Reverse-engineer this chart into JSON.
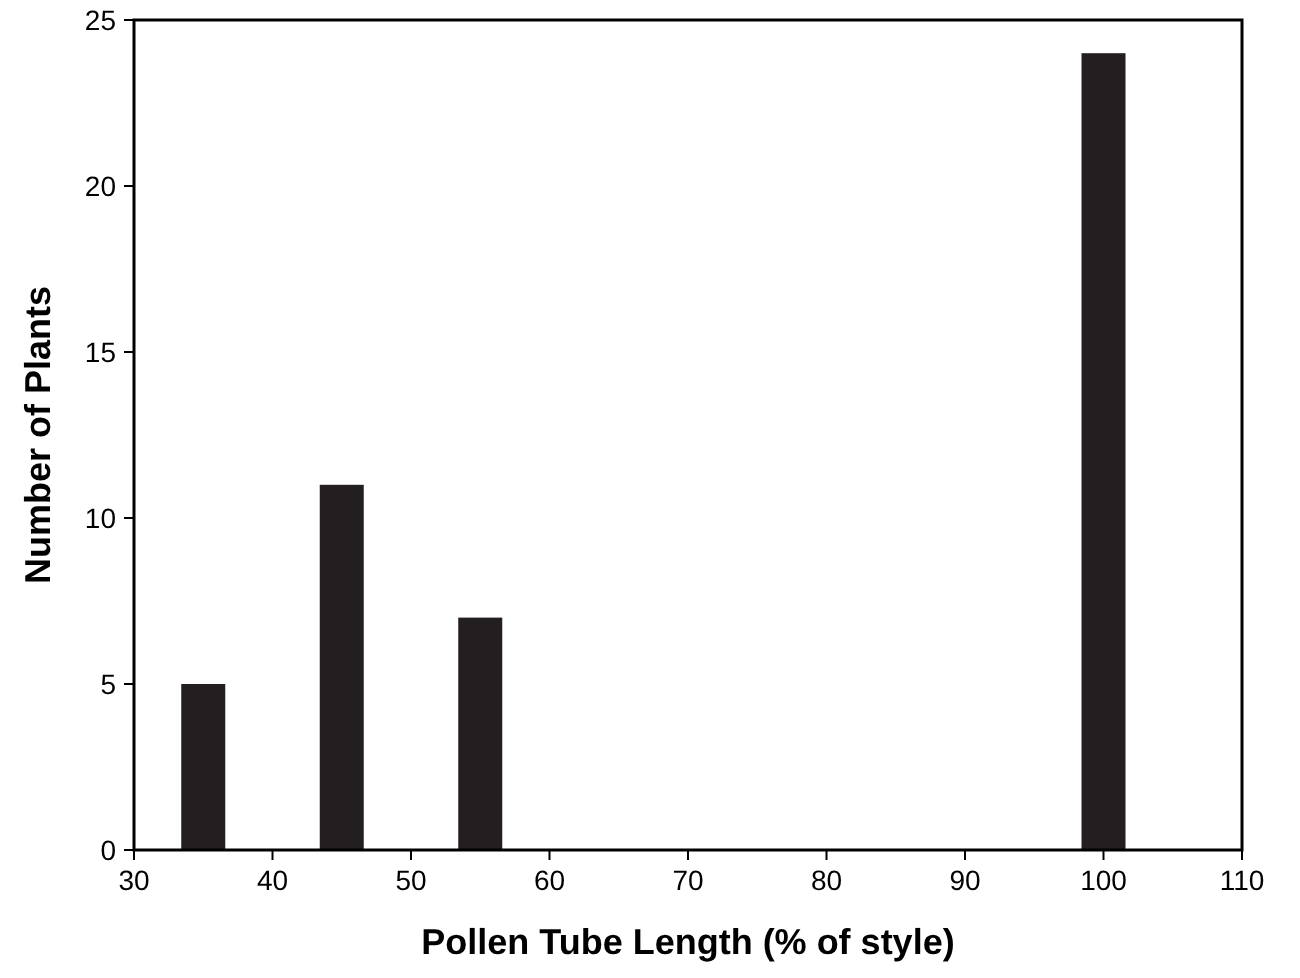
{
  "chart_data": {
    "type": "bar",
    "xlabel": "Pollen Tube Length (% of style)",
    "ylabel": "Number of Plants",
    "x": [
      35,
      45,
      55,
      100
    ],
    "values": [
      5,
      11,
      7,
      24
    ],
    "color": "#231f20",
    "xlim": [
      30,
      110
    ],
    "xticks": [
      30,
      40,
      50,
      60,
      70,
      80,
      90,
      100,
      110
    ],
    "ylim": [
      0,
      25
    ],
    "yticks": [
      0,
      5,
      10,
      15,
      20,
      25
    ],
    "grid": false
  }
}
